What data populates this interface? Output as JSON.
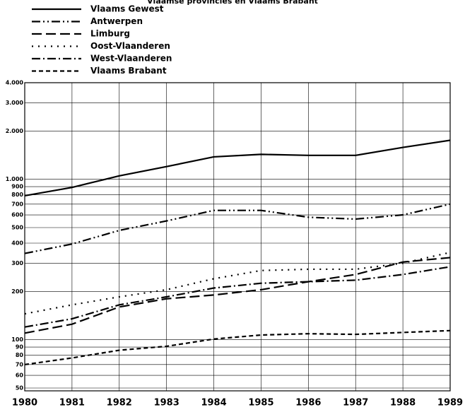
{
  "chart_data": {
    "type": "line",
    "title": "Vlaamse provincies en Vlaams Brabant",
    "x": [
      1980,
      1981,
      1982,
      1983,
      1984,
      1985,
      1986,
      1987,
      1988,
      1989
    ],
    "xlim": [
      1980,
      1989
    ],
    "xticks": [
      1980,
      1981,
      1982,
      1983,
      1984,
      1985,
      1986,
      1987,
      1988,
      1989
    ],
    "ylim": [
      50,
      4000
    ],
    "log_scale": true,
    "grid": true,
    "legend": "top-left",
    "yticks": [
      50,
      60,
      70,
      80,
      90,
      100,
      200,
      300,
      400,
      500,
      600,
      700,
      800,
      900,
      {
        "value": 1000,
        "label": "1.000"
      },
      {
        "value": 2000,
        "label": "2.000"
      },
      {
        "value": 3000,
        "label": "3.000"
      },
      {
        "value": 4000,
        "label": "4.000"
      }
    ],
    "series": [
      {
        "name": "Vlaams Gewest",
        "color": "#000000",
        "style": "solid",
        "values": [
          790,
          890,
          1050,
          1200,
          1380,
          1430,
          1410,
          1410,
          1580,
          1750
        ]
      },
      {
        "name": "Antwerpen",
        "color": "#000000",
        "style": "dashdotdot",
        "values": [
          345,
          395,
          480,
          550,
          640,
          640,
          580,
          565,
          600,
          700
        ]
      },
      {
        "name": "Limburg",
        "color": "#000000",
        "style": "longdash",
        "values": [
          110,
          125,
          160,
          180,
          190,
          205,
          230,
          255,
          305,
          325
        ]
      },
      {
        "name": "Oost-Vlaanderen",
        "color": "#000000",
        "style": "dotted",
        "values": [
          145,
          165,
          185,
          205,
          240,
          270,
          275,
          275,
          300,
          350
        ]
      },
      {
        "name": "West-Vlaanderen",
        "color": "#000000",
        "style": "dashdot",
        "values": [
          120,
          135,
          165,
          185,
          210,
          225,
          230,
          235,
          255,
          285
        ]
      },
      {
        "name": "Vlaams Brabant",
        "color": "#000000",
        "style": "shortdash",
        "values": [
          70,
          77,
          86,
          91,
          101,
          107,
          109,
          108,
          111,
          114
        ]
      }
    ]
  }
}
